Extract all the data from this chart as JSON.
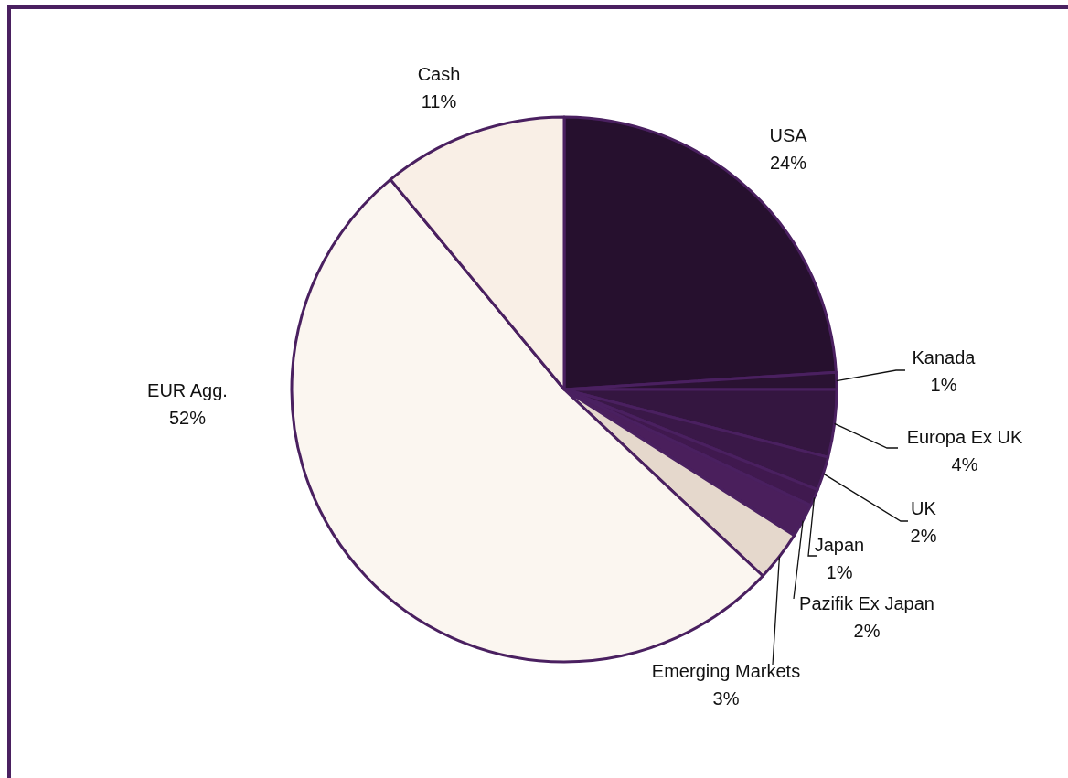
{
  "chart_data": {
    "type": "pie",
    "categories": [
      "USA",
      "Kanada",
      "Europa Ex UK",
      "UK",
      "Japan",
      "Pazifik Ex Japan",
      "Emerging Markets",
      "EUR Agg.",
      "Cash"
    ],
    "values": [
      24,
      1,
      4,
      2,
      1,
      2,
      3,
      52,
      11
    ],
    "colors": [
      "#26102e",
      "#2a1232",
      "#341640",
      "#3a1848",
      "#40194f",
      "#4a1f5c",
      "#e5d8cc",
      "#fbf6f0",
      "#f9efe6"
    ],
    "value_labels": [
      "24%",
      "1%",
      "4%",
      "2%",
      "1%",
      "2%",
      "3%",
      "52%",
      "11%"
    ]
  }
}
